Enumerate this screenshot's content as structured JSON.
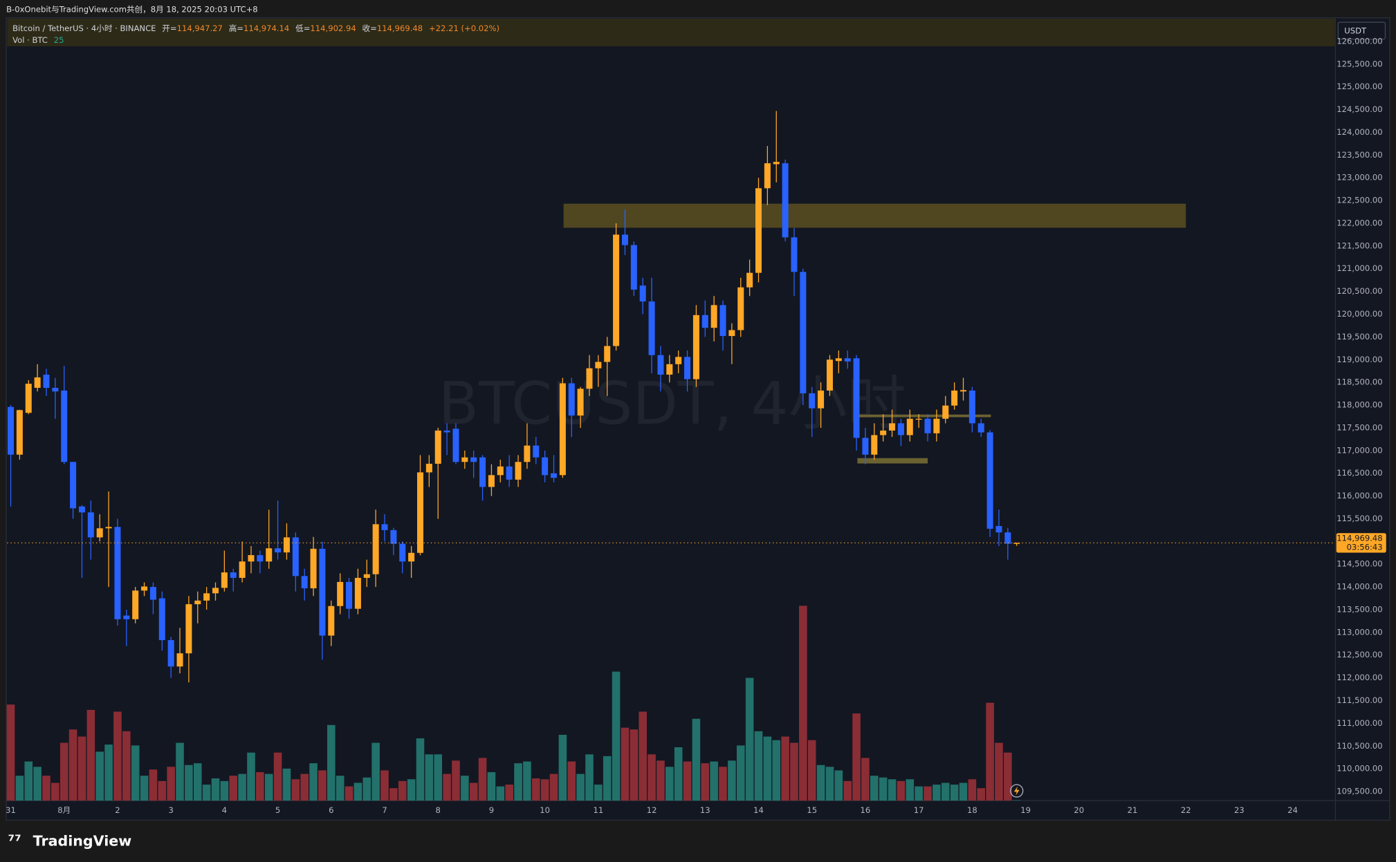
{
  "page": {
    "caption": "B-0xOnebit与TradingView.com共创，8月 18, 2025 20:03 UTC+8",
    "brand": "TradingView",
    "currency_box": "USDT"
  },
  "chart_data": {
    "type": "candlestick",
    "title": "Bitcoin / TetherUS · 4小时 · BINANCE",
    "watermark": "BTCUSDT, 4小时",
    "legend_header": {
      "open_label": "开=",
      "open": "114,947.27",
      "high_label": "高=",
      "high": "114,974.14",
      "low_label": "低=",
      "low": "114,902.94",
      "close_label": "收=",
      "close": "114,969.48",
      "change": "+22.21 (+0.02%)",
      "volume_title": "Vol · BTC"
    },
    "last_price_label": "114,969.48",
    "countdown": "03:56:43",
    "up_color": "#ffa726",
    "down_color": "#2962ff",
    "volume_up_color": "#22716b",
    "volume_down_color": "#8b2d35",
    "grid": false,
    "open": [
      117960,
      116910,
      117830,
      118380,
      118670,
      118380,
      118320,
      116750,
      115770,
      115640,
      115090,
      115290,
      115320,
      113370,
      113290,
      113920,
      114000,
      113750,
      112830,
      112250,
      112540,
      113620,
      113700,
      113860,
      113980,
      114320,
      114200,
      114560,
      114700,
      114560,
      114850,
      114760,
      115090,
      114240,
      113970,
      114840,
      112930,
      113580,
      114110,
      113520,
      114200,
      114280,
      115380,
      115250,
      114950,
      114560,
      114750,
      116520,
      116710,
      117440,
      117480,
      116750,
      116850,
      116850,
      116200,
      116460,
      116650,
      116360,
      116750,
      117110,
      116850,
      116500,
      116460,
      118480,
      117770,
      118360,
      118810,
      118950,
      119300,
      121750,
      121520,
      120630,
      120280,
      119100,
      118670,
      118900,
      119060,
      118570,
      119980,
      119700,
      120200,
      119520,
      119650,
      120590,
      120910,
      122770,
      123300,
      123320,
      121690,
      120930,
      118260,
      117930,
      118320,
      118970,
      119030,
      119030,
      117280,
      116910,
      117340,
      117440,
      117600,
      117340,
      117680,
      117700,
      117380,
      117700,
      117990,
      118300,
      118320,
      117600,
      117400,
      115340,
      115200,
      114947.27
    ],
    "high": [
      118000,
      117900,
      118550,
      118900,
      118800,
      118600,
      118860,
      116750,
      115800,
      115900,
      115600,
      116100,
      115500,
      113500,
      114000,
      114100,
      114100,
      113900,
      112900,
      113100,
      113800,
      113900,
      114000,
      114100,
      114800,
      114400,
      115000,
      114900,
      114800,
      115700,
      115900,
      115400,
      115200,
      114400,
      115100,
      115000,
      113700,
      114300,
      114200,
      114400,
      114600,
      115700,
      115600,
      115300,
      115000,
      114900,
      116900,
      116900,
      117500,
      117600,
      117600,
      117000,
      117000,
      116900,
      116700,
      116800,
      116900,
      116900,
      117600,
      117300,
      117000,
      116900,
      118600,
      118600,
      118400,
      119100,
      119100,
      119500,
      122000,
      122300,
      121600,
      120800,
      120800,
      119300,
      119100,
      119200,
      119200,
      120200,
      120300,
      120400,
      120300,
      119800,
      120800,
      121200,
      123000,
      123700,
      124470,
      123400,
      121900,
      121000,
      118400,
      118500,
      119100,
      119200,
      119200,
      119100,
      117500,
      117600,
      117800,
      117900,
      117700,
      117900,
      117800,
      117800,
      117900,
      118200,
      118500,
      118600,
      118400,
      117700,
      117450,
      115700,
      115300,
      114974.14
    ],
    "low": [
      115770,
      116800,
      117800,
      118300,
      118200,
      117700,
      116700,
      115500,
      114200,
      114600,
      115000,
      114000,
      113150,
      112700,
      113200,
      113800,
      113400,
      112600,
      112000,
      112100,
      111900,
      113200,
      113500,
      113700,
      113900,
      113900,
      114100,
      114300,
      114300,
      114400,
      114600,
      114600,
      113900,
      113700,
      113800,
      112400,
      112700,
      113400,
      113300,
      113400,
      114000,
      114000,
      115000,
      114700,
      114300,
      114200,
      114700,
      116200,
      115500,
      116900,
      116700,
      116600,
      116400,
      115900,
      116000,
      116300,
      116200,
      116200,
      116600,
      116700,
      116300,
      116300,
      116400,
      117300,
      117500,
      118200,
      118400,
      118200,
      119200,
      121300,
      120400,
      120000,
      118700,
      118300,
      118500,
      118700,
      118300,
      118400,
      119500,
      119400,
      119200,
      118900,
      119500,
      120400,
      120700,
      122400,
      122900,
      121600,
      120400,
      118000,
      117300,
      117500,
      118200,
      118700,
      118800,
      117000,
      116700,
      116800,
      117200,
      117300,
      117100,
      117200,
      117500,
      117200,
      117200,
      117600,
      117900,
      118100,
      117400,
      117300,
      115100,
      114900,
      114600,
      114902.94
    ],
    "close": [
      116910,
      117890,
      118470,
      118610,
      118380,
      118300,
      116750,
      115730,
      115640,
      115090,
      115290,
      115320,
      113290,
      113290,
      113920,
      114010,
      113720,
      112830,
      112250,
      112540,
      113620,
      113700,
      113860,
      113980,
      114320,
      114200,
      114560,
      114700,
      114560,
      114850,
      114760,
      115090,
      114240,
      113970,
      114840,
      112930,
      113580,
      114110,
      113520,
      114200,
      114280,
      115380,
      115250,
      114950,
      114560,
      114750,
      116520,
      116710,
      117440,
      117400,
      116750,
      116850,
      116750,
      116200,
      116460,
      116650,
      116360,
      116750,
      117110,
      116850,
      116460,
      116400,
      118480,
      117770,
      118360,
      118810,
      118950,
      119300,
      121750,
      121520,
      120540,
      120280,
      119100,
      118670,
      118900,
      119060,
      118570,
      119980,
      119700,
      120200,
      119520,
      119650,
      120590,
      120910,
      122770,
      123320,
      123350,
      121690,
      120930,
      118260,
      117930,
      118320,
      119000,
      119030,
      118960,
      117280,
      116910,
      117340,
      117440,
      117600,
      117340,
      117700,
      117700,
      117380,
      117700,
      117990,
      118320,
      118330,
      117600,
      117400,
      115280,
      115200,
      114950,
      114969.48
    ],
    "volume": [
      5400,
      1400,
      2200,
      1900,
      1400,
      1000,
      3250,
      4000,
      3600,
      5100,
      2750,
      3150,
      5000,
      3900,
      3100,
      1400,
      1750,
      1100,
      1900,
      3250,
      2000,
      2100,
      900,
      1250,
      1100,
      1400,
      1500,
      2700,
      1600,
      1500,
      2700,
      1800,
      1200,
      1500,
      2100,
      1700,
      4250,
      1400,
      800,
      1000,
      1300,
      3250,
      1700,
      700,
      1100,
      1200,
      3500,
      2600,
      2600,
      1500,
      2250,
      1400,
      1000,
      2400,
      1600,
      800,
      900,
      2100,
      2200,
      1250,
      1200,
      1500,
      3700,
      2200,
      1500,
      2600,
      900,
      2500,
      7250,
      4100,
      4000,
      5000,
      2600,
      2250,
      1900,
      3000,
      2200,
      4600,
      2100,
      2200,
      1900,
      2250,
      3100,
      6900,
      3900,
      3600,
      3400,
      3600,
      3250,
      10950,
      3400,
      2000,
      1900,
      1700,
      1100,
      4900,
      2400,
      1400,
      1300,
      1200,
      1100,
      1200,
      800,
      800,
      900,
      1000,
      900,
      1000,
      1200,
      700,
      5500,
      3250,
      2700,
      25
    ],
    "xlim": [
      -0.4,
      148.8
    ],
    "xticks": [
      {
        "value": 0,
        "label": "31"
      },
      {
        "value": 6,
        "label": "8月"
      },
      {
        "value": 12,
        "label": "2"
      },
      {
        "value": 18,
        "label": "3"
      },
      {
        "value": 24,
        "label": "4"
      },
      {
        "value": 30,
        "label": "5"
      },
      {
        "value": 36,
        "label": "6"
      },
      {
        "value": 42,
        "label": "7"
      },
      {
        "value": 48,
        "label": "8"
      },
      {
        "value": 54,
        "label": "9"
      },
      {
        "value": 60,
        "label": "10"
      },
      {
        "value": 66,
        "label": "11"
      },
      {
        "value": 72,
        "label": "12"
      },
      {
        "value": 78,
        "label": "13"
      },
      {
        "value": 84,
        "label": "14"
      },
      {
        "value": 90,
        "label": "15"
      },
      {
        "value": 96,
        "label": "16"
      },
      {
        "value": 102,
        "label": "17"
      },
      {
        "value": 108,
        "label": "18"
      },
      {
        "value": 114,
        "label": "19"
      },
      {
        "value": 120,
        "label": "20"
      },
      {
        "value": 126,
        "label": "21"
      },
      {
        "value": 132,
        "label": "22"
      },
      {
        "value": 138,
        "label": "23"
      },
      {
        "value": 144,
        "label": "24"
      }
    ],
    "ylim": [
      109300,
      126500
    ],
    "yticks": [
      {
        "value": 109500,
        "label": "109,500.00"
      },
      {
        "value": 110000,
        "label": "110,000.00"
      },
      {
        "value": 110500,
        "label": "110,500.00"
      },
      {
        "value": 111000,
        "label": "111,000.00"
      },
      {
        "value": 111500,
        "label": "111,500.00"
      },
      {
        "value": 112000,
        "label": "112,000.00"
      },
      {
        "value": 112500,
        "label": "112,500.00"
      },
      {
        "value": 113000,
        "label": "113,000.00"
      },
      {
        "value": 113500,
        "label": "113,500.00"
      },
      {
        "value": 114000,
        "label": "114,000.00"
      },
      {
        "value": 114500,
        "label": "114,500.00"
      },
      {
        "value": 115000,
        "label": "115,000.00"
      },
      {
        "value": 115500,
        "label": "115,500.00"
      },
      {
        "value": 116000,
        "label": "116,000.00"
      },
      {
        "value": 116500,
        "label": "116,500.00"
      },
      {
        "value": 117000,
        "label": "117,000.00"
      },
      {
        "value": 117500,
        "label": "117,500.00"
      },
      {
        "value": 118000,
        "label": "118,000.00"
      },
      {
        "value": 118500,
        "label": "118,500.00"
      },
      {
        "value": 119000,
        "label": "119,000.00"
      },
      {
        "value": 119500,
        "label": "119,500.00"
      },
      {
        "value": 120000,
        "label": "120,000.00"
      },
      {
        "value": 120500,
        "label": "120,500.00"
      },
      {
        "value": 121000,
        "label": "121,000.00"
      },
      {
        "value": 121500,
        "label": "121,500.00"
      },
      {
        "value": 122000,
        "label": "122,000.00"
      },
      {
        "value": 122500,
        "label": "122,500.00"
      },
      {
        "value": 123000,
        "label": "123,000.00"
      },
      {
        "value": 123500,
        "label": "123,500.00"
      },
      {
        "value": 124000,
        "label": "124,000.00"
      },
      {
        "value": 124500,
        "label": "124,500.00"
      },
      {
        "value": 125000,
        "label": "125,000.00"
      },
      {
        "value": 125500,
        "label": "125,500.00"
      },
      {
        "value": 126000,
        "label": "126,000.00"
      }
    ]
  }
}
